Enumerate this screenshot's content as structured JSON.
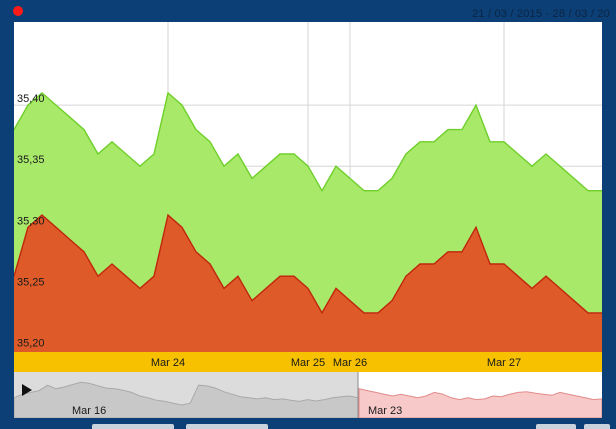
{
  "header": {
    "date_range": "21 / 03 / 2015 - 28 / 03 / 20"
  },
  "colors": {
    "frame": "#0c3f75",
    "upper_fill": "#a8e96a",
    "upper_line": "#6fcf2a",
    "lower_fill": "#de5b29",
    "lower_line": "#c0260c",
    "axis_band": "#f7c100",
    "navigator_left": "#dcdcdc",
    "navigator_right": "#f8c9c9",
    "record_dot": "#ff1a1a"
  },
  "chart_data": {
    "type": "area",
    "ylim": [
      35.198,
      35.468
    ],
    "y_ticks": [
      "35,20",
      "35,25",
      "35,30",
      "35,35",
      "35,40"
    ],
    "y_tick_values": [
      35.2,
      35.25,
      35.3,
      35.35,
      35.4
    ],
    "x_tick_labels": [
      "Mar 24",
      "Mar 25",
      "Mar 26",
      "Mar 27"
    ],
    "x_tick_index": [
      11,
      21,
      24,
      35
    ],
    "grid": true,
    "series": [
      {
        "values": [
          35.38,
          35.4,
          35.41,
          35.4,
          35.39,
          35.38,
          35.36,
          35.37,
          35.36,
          35.35,
          35.36,
          35.41,
          35.4,
          35.38,
          35.37,
          35.35,
          35.36,
          35.34,
          35.35,
          35.36,
          35.36,
          35.35,
          35.33,
          35.35,
          35.34,
          35.33,
          35.33,
          35.34,
          35.36,
          35.37,
          35.37,
          35.38,
          35.38,
          35.4,
          35.37,
          35.37,
          35.36,
          35.35,
          35.36,
          35.35,
          35.34,
          35.33,
          35.33
        ]
      },
      {
        "values": [
          35.26,
          35.3,
          35.31,
          35.3,
          35.29,
          35.28,
          35.26,
          35.27,
          35.26,
          35.25,
          35.26,
          35.31,
          35.3,
          35.28,
          35.27,
          35.25,
          35.26,
          35.24,
          35.25,
          35.26,
          35.26,
          35.25,
          35.23,
          35.25,
          35.24,
          35.23,
          35.23,
          35.24,
          35.26,
          35.27,
          35.27,
          35.28,
          35.28,
          35.3,
          35.27,
          35.27,
          35.26,
          35.25,
          35.26,
          35.25,
          35.24,
          35.23,
          35.23
        ]
      }
    ]
  },
  "navigator": {
    "labels": [
      "Mar 16",
      "Mar 23"
    ],
    "history": [
      0.45,
      0.55,
      0.6,
      0.65,
      0.8,
      0.7,
      0.75,
      0.82,
      0.88,
      0.85,
      0.78,
      0.72,
      0.7,
      0.66,
      0.6,
      0.5,
      0.45,
      0.38,
      0.35,
      0.3,
      0.25,
      0.3,
      0.8,
      0.78,
      0.72,
      0.62,
      0.55,
      0.48,
      0.45,
      0.42,
      0.45,
      0.4,
      0.42,
      0.38,
      0.35,
      0.4,
      0.36,
      0.4,
      0.45,
      0.48,
      0.5,
      0.45
    ],
    "recent": [
      0.7,
      0.65,
      0.6,
      0.55,
      0.5,
      0.55,
      0.5,
      0.45,
      0.5,
      0.6,
      0.55,
      0.45,
      0.4,
      0.45,
      0.4,
      0.42,
      0.5,
      0.48,
      0.55,
      0.6,
      0.62,
      0.58,
      0.55,
      0.52,
      0.6,
      0.55,
      0.5,
      0.45,
      0.4,
      0.42
    ]
  }
}
